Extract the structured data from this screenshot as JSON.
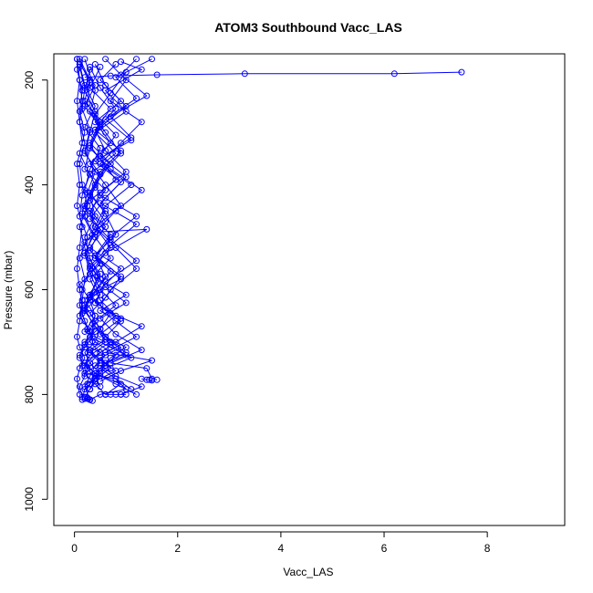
{
  "chart_data": {
    "type": "line",
    "title": "ATOM3 Southbound Vacc_LAS",
    "xlabel": "Vacc_LAS",
    "ylabel": "Pressure (mbar)",
    "xlim": [
      -0.4,
      9.5
    ],
    "ylim": [
      1050,
      150
    ],
    "y_reversed": true,
    "x_ticks": [
      0,
      2,
      4,
      6,
      8
    ],
    "y_ticks": [
      200,
      400,
      600,
      800,
      1000
    ],
    "grid": false,
    "marker": "open-circle",
    "color": "#0000ff",
    "series": [
      {
        "x": [
          1.2,
          0.9,
          1.4,
          0.7,
          1.1,
          0.5,
          0.8,
          0.3,
          0.6,
          0.2,
          0.5,
          0.1,
          0.3,
          0.4,
          0.2,
          0.6,
          0.3,
          0.5,
          0.2,
          0.8,
          1.0,
          0.5,
          0.3
        ],
        "y": [
          160,
          190,
          230,
          270,
          310,
          350,
          390,
          430,
          470,
          510,
          550,
          590,
          620,
          650,
          680,
          700,
          720,
          740,
          760,
          770,
          790,
          800,
          810
        ]
      },
      {
        "x": [
          0.1,
          0.3,
          0.2,
          0.5,
          0.3,
          0.7,
          0.4,
          0.2,
          0.6,
          0.3,
          0.9,
          0.5,
          0.2,
          0.4,
          0.3,
          0.7,
          1.1,
          0.6,
          0.4,
          0.3,
          0.2
        ],
        "y": [
          160,
          200,
          240,
          280,
          320,
          360,
          400,
          440,
          480,
          520,
          560,
          600,
          630,
          660,
          690,
          710,
          730,
          750,
          770,
          790,
          805
        ]
      },
      {
        "x": [
          0.9,
          1.3,
          0.6,
          1.0,
          0.4,
          0.8,
          0.3,
          0.5,
          1.2,
          0.7,
          0.4,
          0.9,
          0.3,
          0.6,
          1.3,
          0.8,
          0.5,
          0.2,
          0.4,
          0.9,
          0.6
        ],
        "y": [
          165,
          180,
          220,
          260,
          300,
          340,
          380,
          420,
          460,
          500,
          540,
          580,
          610,
          640,
          670,
          700,
          720,
          740,
          760,
          780,
          800
        ]
      },
      {
        "x": [
          0.05,
          0.1,
          0.15,
          0.1,
          0.2,
          0.1,
          0.15,
          0.25,
          0.1,
          0.2,
          0.3,
          0.15,
          0.1,
          0.2,
          0.35,
          0.2,
          0.1,
          0.25,
          0.4,
          0.2,
          0.15
        ],
        "y": [
          160,
          200,
          240,
          280,
          320,
          360,
          400,
          440,
          480,
          520,
          560,
          600,
          630,
          660,
          690,
          710,
          730,
          750,
          770,
          790,
          810
        ]
      },
      {
        "x": [
          0.4,
          0.6,
          1.0,
          0.5,
          0.3,
          0.7,
          1.3,
          0.8,
          0.4,
          1.4,
          0.6,
          0.3,
          1.0,
          0.5,
          0.8,
          1.2,
          0.6,
          1.5,
          0.9,
          0.5
        ],
        "y": [
          170,
          210,
          250,
          290,
          330,
          370,
          410,
          450,
          490,
          485,
          530,
          570,
          610,
          640,
          660,
          690,
          720,
          735,
          755,
          775
        ]
      },
      {
        "x": [
          0.2,
          0.4,
          0.3,
          0.6,
          0.9,
          0.5,
          0.3,
          0.2,
          0.4,
          0.7,
          0.3,
          0.5,
          0.8,
          0.4,
          0.2,
          0.3,
          0.6,
          0.4,
          0.3
        ],
        "y": [
          160,
          220,
          260,
          300,
          340,
          380,
          420,
          460,
          500,
          540,
          580,
          620,
          650,
          680,
          700,
          720,
          740,
          760,
          780
        ]
      },
      {
        "x": [
          0.1,
          0.2,
          0.4,
          0.2,
          0.5,
          0.3,
          0.2,
          0.6,
          0.4,
          0.2,
          0.3,
          0.5,
          0.2,
          0.4,
          0.7,
          0.3,
          0.2,
          0.5,
          0.3
        ],
        "y": [
          170,
          210,
          250,
          290,
          330,
          370,
          410,
          450,
          490,
          530,
          570,
          610,
          640,
          670,
          700,
          725,
          745,
          765,
          790
        ]
      },
      {
        "x": [
          1.5,
          0.8,
          1.2,
          0.6,
          1.1,
          0.4,
          0.9,
          0.5,
          1.2,
          0.7,
          0.3,
          0.6,
          1.0,
          0.5,
          0.8,
          1.3,
          0.7,
          1.4,
          1.5,
          1.6
        ],
        "y": [
          160,
          195,
          235,
          275,
          315,
          355,
          395,
          435,
          475,
          515,
          555,
          595,
          625,
          655,
          685,
          715,
          740,
          750,
          770,
          772
        ]
      },
      {
        "x": [
          0.05,
          0.15,
          0.1,
          0.2,
          0.1,
          0.3,
          0.15,
          0.1,
          0.25,
          0.1,
          0.2,
          0.15,
          0.1,
          0.3,
          0.2,
          0.1,
          0.15,
          0.2,
          0.1,
          0.15
        ],
        "y": [
          180,
          220,
          260,
          300,
          340,
          380,
          420,
          460,
          500,
          540,
          580,
          620,
          650,
          680,
          705,
          725,
          745,
          765,
          785,
          805
        ]
      },
      {
        "x": [
          0.3,
          0.5,
          0.8,
          0.4,
          0.6,
          1.0,
          0.5,
          0.3,
          0.7,
          0.4,
          0.9,
          0.6,
          0.3,
          0.5,
          0.7,
          1.0,
          0.6,
          0.4,
          0.8,
          1.2
        ],
        "y": [
          175,
          215,
          255,
          295,
          335,
          375,
          415,
          455,
          495,
          535,
          575,
          615,
          645,
          675,
          700,
          720,
          740,
          760,
          780,
          800
        ]
      },
      {
        "x": [
          0.2,
          0.7,
          1.6,
          3.3,
          6.2,
          7.5
        ],
        "y": [
          195,
          192,
          190,
          188,
          188,
          185
        ]
      },
      {
        "x": [
          0.1,
          0.3,
          0.25,
          0.5,
          0.3,
          0.6,
          0.4,
          0.2,
          0.5,
          0.3,
          0.7,
          0.4,
          0.2,
          0.35,
          0.6,
          0.3,
          0.5,
          0.8,
          0.4
        ],
        "y": [
          165,
          205,
          245,
          285,
          325,
          365,
          405,
          445,
          485,
          525,
          565,
          605,
          635,
          665,
          695,
          715,
          735,
          755,
          775
        ]
      },
      {
        "x": [
          0.8,
          0.5,
          0.9,
          0.4,
          0.7,
          0.3,
          0.6,
          0.9,
          0.4,
          0.7,
          0.3,
          0.5,
          0.8,
          0.4,
          0.6,
          0.9,
          0.5,
          0.7,
          0.4,
          0.3
        ],
        "y": [
          170,
          200,
          240,
          280,
          320,
          360,
          400,
          440,
          480,
          520,
          560,
          600,
          630,
          660,
          690,
          710,
          730,
          750,
          770,
          790
        ]
      },
      {
        "x": [
          0.1,
          0.2,
          0.15,
          0.3,
          0.2,
          0.4,
          0.25,
          0.15,
          0.35,
          0.2,
          0.45,
          0.3,
          0.15,
          0.25,
          0.4,
          0.2,
          0.3,
          0.5,
          0.25
        ],
        "y": [
          175,
          215,
          255,
          295,
          335,
          375,
          415,
          455,
          495,
          535,
          575,
          615,
          645,
          675,
          700,
          720,
          740,
          760,
          780
        ]
      },
      {
        "x": [
          0.6,
          1.0,
          0.7,
          1.3,
          0.9,
          0.5,
          1.1,
          0.6,
          0.4,
          0.8,
          1.2,
          0.7,
          0.5,
          0.9,
          0.6,
          1.0,
          0.7,
          0.5,
          0.8,
          1.1
        ],
        "y": [
          160,
          200,
          240,
          280,
          320,
          360,
          400,
          440,
          480,
          520,
          560,
          600,
          630,
          660,
          690,
          710,
          730,
          750,
          770,
          790
        ]
      },
      {
        "x": [
          0.3,
          0.2,
          0.4,
          0.3,
          0.2,
          0.5,
          0.3,
          0.4,
          0.2,
          0.3,
          0.5,
          0.2,
          0.4,
          0.3,
          0.2,
          0.6,
          0.4,
          0.3,
          0.2,
          0.3
        ],
        "y": [
          180,
          220,
          260,
          300,
          340,
          380,
          420,
          460,
          500,
          540,
          580,
          620,
          650,
          680,
          705,
          725,
          745,
          765,
          785,
          810
        ]
      },
      {
        "x": [
          0.05,
          0.1,
          0.05,
          0.1,
          0.15,
          0.05,
          0.1,
          0.05,
          0.15,
          0.1,
          0.05,
          0.1,
          0.15,
          0.1,
          0.05,
          0.1,
          0.2,
          0.1,
          0.05,
          0.1
        ],
        "y": [
          160,
          200,
          240,
          280,
          320,
          360,
          400,
          440,
          480,
          520,
          560,
          600,
          630,
          660,
          690,
          710,
          730,
          750,
          770,
          800
        ]
      },
      {
        "x": [
          1.0,
          0.7,
          0.4,
          0.8,
          0.5,
          1.0,
          0.6,
          0.3,
          0.7,
          1.2,
          0.6,
          0.4,
          0.9,
          0.5,
          0.7,
          1.0,
          0.5,
          0.8,
          1.3,
          0.9
        ],
        "y": [
          185,
          225,
          265,
          305,
          345,
          385,
          425,
          465,
          505,
          545,
          585,
          625,
          655,
          685,
          705,
          725,
          745,
          765,
          785,
          800
        ]
      },
      {
        "x": [
          0.1,
          0.4,
          0.2,
          0.5,
          0.3,
          0.2,
          0.6,
          0.3,
          0.4,
          0.2,
          0.5,
          0.3,
          0.2,
          0.4,
          0.3,
          0.5,
          0.3,
          0.2,
          0.4,
          0.6
        ],
        "y": [
          170,
          210,
          250,
          290,
          330,
          370,
          410,
          450,
          490,
          530,
          570,
          610,
          640,
          670,
          700,
          720,
          740,
          760,
          780,
          800
        ]
      },
      {
        "x": [
          0.5,
          0.3,
          0.7,
          0.4,
          0.9,
          0.5,
          0.3,
          0.6,
          0.8,
          0.4,
          0.6,
          0.3,
          0.7,
          0.5,
          0.4,
          0.8,
          0.6,
          0.4,
          0.5
        ],
        "y": [
          175,
          215,
          255,
          295,
          335,
          375,
          415,
          455,
          495,
          535,
          575,
          615,
          645,
          675,
          700,
          725,
          745,
          765,
          785
        ]
      },
      {
        "x": [
          0.6,
          0.7,
          0.8,
          0.9,
          1.0
        ],
        "y": [
          800,
          800,
          800,
          800,
          800
        ]
      },
      {
        "x": [
          1.3,
          1.4,
          1.45,
          1.5
        ],
        "y": [
          770,
          772,
          772,
          773
        ]
      },
      {
        "x": [
          0.2,
          0.3,
          0.25,
          0.35,
          0.3,
          0.2,
          0.25
        ],
        "y": [
          805,
          810,
          808,
          812,
          810,
          808,
          806
        ]
      }
    ]
  }
}
